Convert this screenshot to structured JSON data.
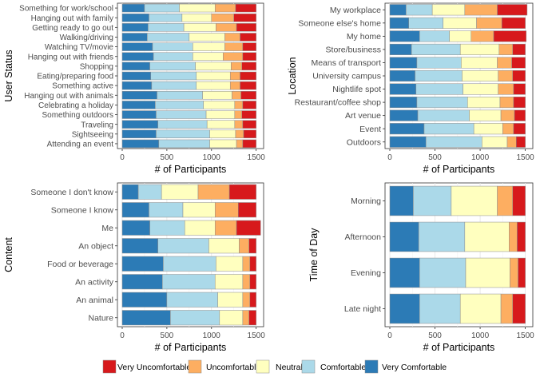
{
  "colors": {
    "very_uncomfortable": "#d7191c",
    "uncomfortable": "#fdae61",
    "neutral": "#ffffbf",
    "comfortable": "#abd9e9",
    "very_comfortable": "#2c7bb6"
  },
  "legend": {
    "placement": "bottom",
    "items": [
      {
        "key": "very_uncomfortable",
        "label": "Very Uncomfortable"
      },
      {
        "key": "uncomfortable",
        "label": "Uncomfortable"
      },
      {
        "key": "neutral",
        "label": "Neutral"
      },
      {
        "key": "comfortable",
        "label": "Comfortable"
      },
      {
        "key": "very_comfortable",
        "label": "Very Comfortable"
      }
    ]
  },
  "chart_data": [
    {
      "type": "bar",
      "orientation": "horizontal",
      "stacked": true,
      "title": "",
      "xlabel": "# of Participants",
      "ylabel": "User Status",
      "xlim": [
        0,
        1530
      ],
      "xticks": [
        0,
        500,
        1000,
        1500
      ],
      "grid": true,
      "categories": [
        "Something for work/school",
        "Hanging out with family",
        "Getting ready to go out",
        "Walking/driving",
        "Watching TV/movie",
        "Hanging out with friends",
        "Shopping",
        "Eating/preparing food",
        "Something active",
        "Hanging out with animals",
        "Celebrating a holiday",
        "Something outdoors",
        "Traveling",
        "Sightseeing",
        "Attending an event"
      ],
      "series": [
        {
          "key": "very_comfortable",
          "values": [
            250,
            300,
            290,
            280,
            340,
            350,
            310,
            320,
            330,
            390,
            370,
            380,
            400,
            380,
            410
          ]
        },
        {
          "key": "comfortable",
          "values": [
            390,
            370,
            400,
            470,
            450,
            440,
            510,
            510,
            500,
            510,
            540,
            560,
            550,
            600,
            570
          ]
        },
        {
          "key": "neutral",
          "values": [
            400,
            330,
            360,
            400,
            360,
            340,
            400,
            380,
            380,
            330,
            350,
            320,
            310,
            290,
            300
          ]
        },
        {
          "key": "uncomfortable",
          "values": [
            230,
            250,
            230,
            170,
            200,
            220,
            120,
            110,
            110,
            100,
            90,
            80,
            90,
            90,
            70
          ]
        },
        {
          "key": "very_uncomfortable",
          "values": [
            230,
            250,
            220,
            180,
            150,
            150,
            160,
            180,
            180,
            170,
            150,
            160,
            150,
            140,
            150
          ]
        }
      ]
    },
    {
      "type": "bar",
      "orientation": "horizontal",
      "stacked": true,
      "title": "",
      "xlabel": "# of Participants",
      "ylabel": "Location",
      "xlim": [
        0,
        1530
      ],
      "xticks": [
        0,
        500,
        1000,
        1500
      ],
      "grid": true,
      "categories": [
        "My workplace",
        "Someone else's home",
        "My home",
        "Store/business",
        "Means of transport",
        "University campus",
        "Nightlife spot",
        "Restaurant/coffee shop",
        "Art venue",
        "Event",
        "Outdoors"
      ],
      "series": [
        {
          "key": "very_comfortable",
          "values": [
            180,
            210,
            330,
            240,
            300,
            280,
            290,
            300,
            310,
            380,
            400
          ]
        },
        {
          "key": "comfortable",
          "values": [
            290,
            380,
            330,
            540,
            490,
            520,
            520,
            560,
            570,
            550,
            620
          ]
        },
        {
          "key": "neutral",
          "values": [
            360,
            370,
            240,
            430,
            400,
            400,
            390,
            360,
            350,
            320,
            280
          ]
        },
        {
          "key": "uncomfortable",
          "values": [
            360,
            280,
            250,
            150,
            160,
            160,
            170,
            150,
            150,
            120,
            100
          ]
        },
        {
          "key": "very_uncomfortable",
          "values": [
            330,
            260,
            360,
            140,
            150,
            140,
            130,
            130,
            120,
            130,
            100
          ]
        }
      ]
    },
    {
      "type": "bar",
      "orientation": "horizontal",
      "stacked": true,
      "title": "",
      "xlabel": "# of Participants",
      "ylabel": "Content",
      "xlim": [
        0,
        1530
      ],
      "xticks": [
        0,
        500,
        1000,
        1500
      ],
      "grid": true,
      "categories": [
        "Someone I don't know",
        "Someone I know",
        "Me",
        "An object",
        "Food or beverage",
        "An activity",
        "An animal",
        "Nature"
      ],
      "series": [
        {
          "key": "very_comfortable",
          "values": [
            180,
            300,
            310,
            400,
            460,
            450,
            500,
            540
          ]
        },
        {
          "key": "comfortable",
          "values": [
            260,
            380,
            390,
            570,
            590,
            590,
            570,
            550
          ]
        },
        {
          "key": "neutral",
          "values": [
            410,
            360,
            340,
            340,
            300,
            310,
            280,
            260
          ]
        },
        {
          "key": "uncomfortable",
          "values": [
            350,
            260,
            240,
            110,
            80,
            80,
            80,
            70
          ]
        },
        {
          "key": "very_uncomfortable",
          "values": [
            300,
            200,
            270,
            80,
            70,
            70,
            70,
            80
          ]
        }
      ]
    },
    {
      "type": "bar",
      "orientation": "horizontal",
      "stacked": true,
      "title": "",
      "xlabel": "# of Participants",
      "ylabel": "Time of Day",
      "xlim": [
        0,
        1530
      ],
      "xticks": [
        0,
        500,
        1000,
        1500
      ],
      "grid": true,
      "categories": [
        "Morning",
        "Afternoon",
        "Evening",
        "Late night"
      ],
      "series": [
        {
          "key": "very_comfortable",
          "values": [
            260,
            320,
            330,
            330
          ]
        },
        {
          "key": "comfortable",
          "values": [
            420,
            510,
            510,
            450
          ]
        },
        {
          "key": "neutral",
          "values": [
            510,
            490,
            490,
            450
          ]
        },
        {
          "key": "uncomfortable",
          "values": [
            170,
            90,
            90,
            130
          ]
        },
        {
          "key": "very_uncomfortable",
          "values": [
            140,
            90,
            80,
            140
          ]
        }
      ]
    }
  ]
}
